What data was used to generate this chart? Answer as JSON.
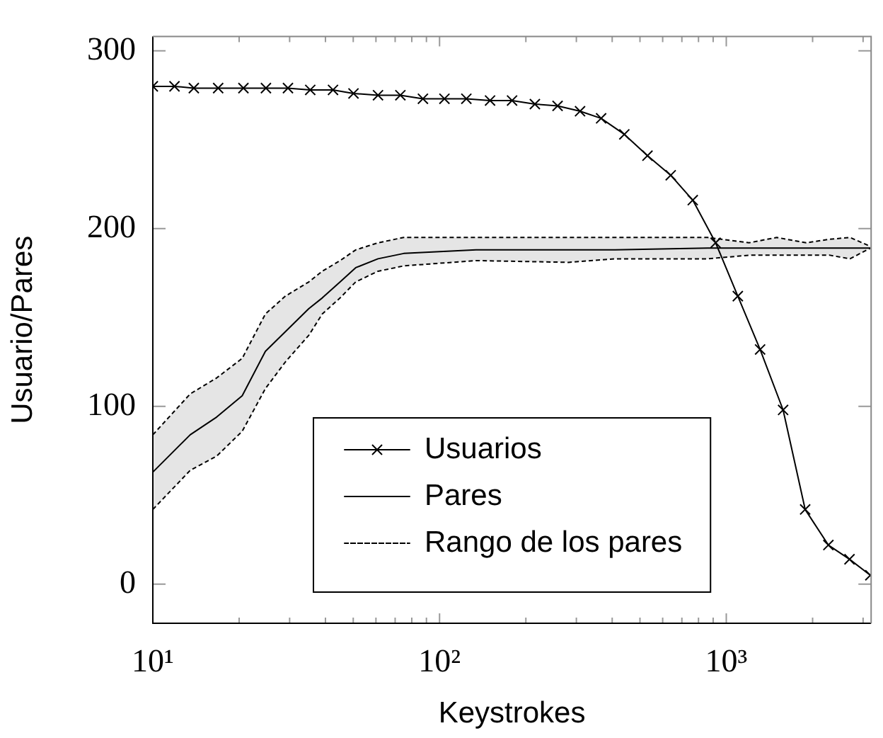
{
  "chart_data": {
    "type": "line",
    "xlabel": "Keystrokes",
    "ylabel": "Usuario/Pares",
    "log": "x",
    "grid": false,
    "legend": "bottom",
    "xlim": [
      10,
      3200
    ],
    "ylim": [
      -22,
      308
    ],
    "xticks": [
      {
        "value": 10,
        "label": "10¹"
      },
      {
        "value": 20,
        "label": null
      },
      {
        "value": 30,
        "label": null
      },
      {
        "value": 40,
        "label": null
      },
      {
        "value": 50,
        "label": null
      },
      {
        "value": 60,
        "label": null
      },
      {
        "value": 70,
        "label": null
      },
      {
        "value": 80,
        "label": null
      },
      {
        "value": 90,
        "label": null
      },
      {
        "value": 100,
        "label": "10²"
      },
      {
        "value": 200,
        "label": null
      },
      {
        "value": 300,
        "label": null
      },
      {
        "value": 400,
        "label": null
      },
      {
        "value": 500,
        "label": null
      },
      {
        "value": 600,
        "label": null
      },
      {
        "value": 700,
        "label": null
      },
      {
        "value": 800,
        "label": null
      },
      {
        "value": 900,
        "label": null
      },
      {
        "value": 1000,
        "label": "10³"
      },
      {
        "value": 2000,
        "label": null
      },
      {
        "value": 3000,
        "label": null
      }
    ],
    "yticks": [
      0,
      100,
      200,
      300
    ],
    "series": [
      {
        "name": "Usuarios",
        "marker": "cross",
        "line_style": "solid",
        "color": "#000000",
        "x": [
          10,
          11.9,
          13.9,
          16.9,
          20.7,
          24.8,
          29.6,
          35.4,
          42.5,
          50.1,
          61,
          73,
          87.5,
          104,
          124,
          150,
          179,
          215,
          258,
          309,
          366,
          441,
          531,
          640,
          764,
          918,
          1097,
          1312,
          1578,
          1884,
          2270,
          2690,
          3180
        ],
        "values": [
          280,
          280,
          279,
          279,
          279,
          279,
          279,
          278,
          278,
          276,
          275,
          275,
          273,
          273,
          273,
          272,
          272,
          270,
          269,
          266,
          262,
          253,
          241,
          230,
          216,
          192,
          162,
          132,
          98,
          42,
          22,
          14,
          5
        ]
      },
      {
        "name": "Pares",
        "marker": "none",
        "line_style": "solid",
        "color": "#000000",
        "x": [
          10,
          13.5,
          16.7,
          20.5,
          24.7,
          29,
          35,
          39,
          45,
          51,
          61,
          75,
          134,
          282,
          409,
          861,
          1200,
          1500,
          1900,
          2300,
          2700,
          3180
        ],
        "values": [
          63,
          84,
          94,
          106,
          131,
          142,
          155,
          161,
          170,
          178,
          183,
          186,
          188,
          188,
          188,
          189,
          189,
          189,
          189,
          189,
          189,
          189
        ],
        "upper": [
          84,
          107,
          116,
          127,
          152,
          162,
          170,
          176,
          182,
          188,
          192,
          195,
          195,
          195,
          195,
          195,
          192,
          195,
          192,
          194,
          195,
          190
        ],
        "lower": [
          42,
          64,
          72,
          86,
          110,
          125,
          140,
          152,
          161,
          170,
          176,
          179,
          182,
          181,
          183,
          183,
          185,
          185,
          185,
          185,
          183,
          189
        ]
      },
      {
        "name": "Rango de los pares",
        "marker": "none",
        "line_style": "dashed",
        "color": "#000000",
        "x": [
          10,
          13.5,
          16.7,
          20.5,
          24.7,
          29,
          35,
          39,
          45,
          51,
          61,
          75,
          134,
          282,
          409,
          861,
          1200,
          1500,
          1900,
          2300,
          2700,
          3180
        ],
        "values": [
          84,
          107,
          116,
          127,
          152,
          162,
          170,
          176,
          182,
          188,
          192,
          195,
          195,
          195,
          195,
          195,
          192,
          195,
          192,
          194,
          195,
          190
        ]
      },
      {
        "marker": "none",
        "line_style": "dashed",
        "color": "#000000",
        "x": [
          10,
          13.5,
          16.7,
          20.5,
          24.7,
          29,
          35,
          39,
          45,
          51,
          61,
          75,
          134,
          282,
          409,
          861,
          1200,
          1500,
          1900,
          2300,
          2700,
          3180
        ],
        "values": [
          42,
          64,
          72,
          86,
          110,
          125,
          140,
          152,
          161,
          170,
          176,
          179,
          182,
          181,
          183,
          183,
          185,
          185,
          185,
          185,
          183,
          189
        ]
      }
    ]
  }
}
